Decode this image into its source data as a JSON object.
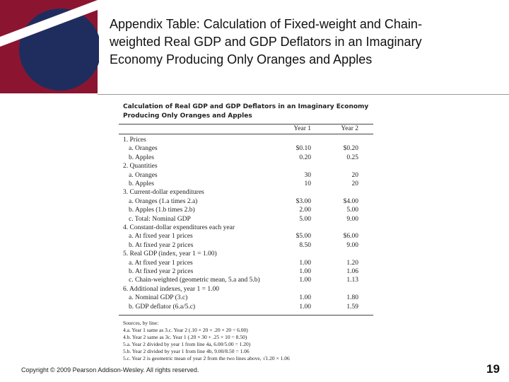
{
  "header": {
    "title_lines": [
      "Appendix Table: Calculation of Fixed-weight and Chain-",
      "weighted Real GDP and GDP Deflators in an Imaginary",
      "Economy Producing Only Oranges and Apples"
    ]
  },
  "table": {
    "title_lines": [
      "Calculation of Real GDP and GDP Deflators in an Imaginary Economy",
      "Producing Only Oranges and Apples"
    ],
    "columns": [
      "Year 1",
      "Year 2"
    ],
    "rows": [
      [
        "1. Prices"
      ],
      [
        "a. Oranges",
        "$0.10",
        "$0.20"
      ],
      [
        "b. Apples",
        "0.20",
        "0.25"
      ],
      [
        "2. Quantities"
      ],
      [
        "a. Oranges",
        "30",
        "20"
      ],
      [
        "b. Apples",
        "10",
        "20"
      ],
      [
        "3. Current-dollar expenditures"
      ],
      [
        "a. Oranges (1.a times 2.a)",
        "$3.00",
        "$4.00"
      ],
      [
        "b. Apples (1.b times 2.b)",
        "2.00",
        "5.00"
      ],
      [
        "c. Total: Nominal GDP",
        "5.00",
        "9.00"
      ],
      [
        "4. Constant-dollar expenditures each year"
      ],
      [
        "a. At fixed year 1 prices",
        "$5.00",
        "$6.00"
      ],
      [
        "b. At fixed year 2 prices",
        "8.50",
        "9.00"
      ],
      [
        "5. Real GDP (index, year 1 = 1.00)"
      ],
      [
        "a. At fixed year 1 prices",
        "1.00",
        "1.20"
      ],
      [
        "b. At fixed year 2 prices",
        "1.00",
        "1.06"
      ],
      [
        "c. Chain-weighted (geometric mean, 5.a and 5.b)",
        "1.00",
        "1.13"
      ],
      [
        "6. Additional indexes, year 1 = 1.00"
      ],
      [
        "a. Nominal GDP (3.c)",
        "1.00",
        "1.80"
      ],
      [
        "b. GDP deflator (6.a/5.c)",
        "1.00",
        "1.59"
      ]
    ],
    "sources": [
      "Sources, by line:",
      "4.a. Year 1 same as 3.c. Year 2 (.10 × 20 + .20 × 20 = 6.00)",
      "4.b. Year 2 same as 3c. Year 1 (.20 × 30 + .25 × 10 = 8.50)",
      "5.a. Year 2 divided by year 1 from line 4a, 6.00/5.00 = 1.20)",
      "5.b. Year 2 divided by year 1 from line 4b, 9.00/8.50 = 1.06",
      "5.c. Year 2 is geometric mean of year 2 from the two lines above, √1.20 × 1.06"
    ]
  },
  "footer": {
    "copyright": "Copyright © 2009 Pearson Addison-Wesley. All rights reserved.",
    "page": "19"
  }
}
